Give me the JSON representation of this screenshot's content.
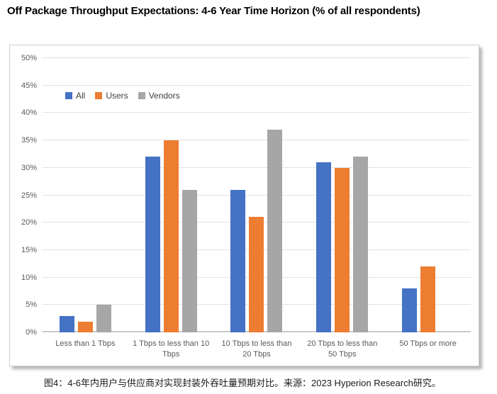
{
  "page": {
    "title": "Off Package Throughput Expectations: 4-6 Year Time Horizon (% of all respondents)",
    "caption": "图4：4-6年内用户与供应商对实现封装外吞吐量预期对比。来源：2023 Hyperion Research研究。"
  },
  "colors": {
    "all": "#4472C4",
    "users": "#ED7D31",
    "vendors": "#A6A6A6",
    "gridline": "#E2E2E2",
    "axis_text": "#595959",
    "title_text": "#000000"
  },
  "chart_data": {
    "type": "bar",
    "title": "Off Package Throughput Expectations: 4-6 Year Time Horizon (% of all respondents)",
    "categories": [
      "Less than 1 Tbps",
      "1 Tbps to less than 10 Tbps",
      "10 Tbps to less than 20 Tbps",
      "20 Tbps to less than 50 Tbps",
      "50 Tbps or more"
    ],
    "series": [
      {
        "name": "All",
        "color": "#4472C4",
        "values": [
          3,
          32,
          26,
          31,
          8
        ]
      },
      {
        "name": "Users",
        "color": "#ED7D31",
        "values": [
          2,
          35,
          21,
          30,
          12
        ]
      },
      {
        "name": "Vendors",
        "color": "#A6A6A6",
        "values": [
          5,
          26,
          37,
          32,
          0
        ]
      }
    ],
    "xlabel": "",
    "ylabel": "",
    "ylim": [
      0,
      50
    ],
    "grid": true,
    "legend_position": "inside-top-left",
    "yticks": [
      {
        "v": 0,
        "label": "0%"
      },
      {
        "v": 5,
        "label": "5%"
      },
      {
        "v": 10,
        "label": "10%"
      },
      {
        "v": 15,
        "label": "15%"
      },
      {
        "v": 20,
        "label": "20%"
      },
      {
        "v": 25,
        "label": "25%"
      },
      {
        "v": 30,
        "label": "30%"
      },
      {
        "v": 35,
        "label": "35%"
      },
      {
        "v": 40,
        "label": "40%"
      },
      {
        "v": 45,
        "label": "45%"
      },
      {
        "v": 50,
        "label": "50%"
      }
    ]
  }
}
